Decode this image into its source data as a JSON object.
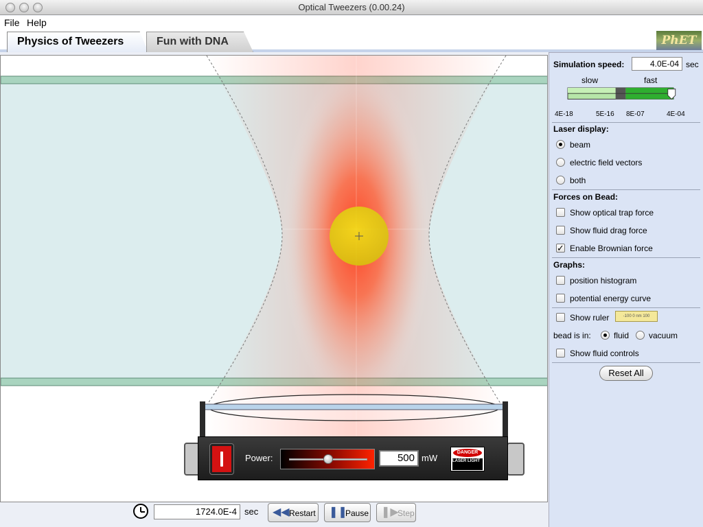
{
  "window": {
    "title": "Optical Tweezers (0.00.24)"
  },
  "menu": {
    "file": "File",
    "help": "Help"
  },
  "tabs": [
    {
      "label": "Physics of Tweezers",
      "selected": true
    },
    {
      "label": "Fun with DNA",
      "selected": false
    }
  ],
  "logo": {
    "text": "PhET"
  },
  "laser": {
    "power_label": "Power:",
    "power_value": "500",
    "power_unit": "mW",
    "power_fraction": 0.5,
    "danger_text": "DANGER",
    "warning_text": "LASER LIGHT"
  },
  "clock": {
    "time": "1724.0E-4",
    "unit": "sec"
  },
  "controls": {
    "restart": "Restart",
    "pause": "Pause",
    "step": "Step"
  },
  "panel": {
    "speed": {
      "label": "Simulation speed:",
      "value": "4.0E-04",
      "unit": "sec",
      "slow": "slow",
      "fast": "fast",
      "ticks": [
        "4E-18",
        "5E-16",
        "8E-07",
        "4E-04"
      ]
    },
    "laser_display": {
      "title": "Laser display:",
      "options": [
        {
          "label": "beam",
          "selected": true
        },
        {
          "label": "electric field vectors",
          "selected": false
        },
        {
          "label": "both",
          "selected": false
        }
      ]
    },
    "forces": {
      "title": "Forces on Bead:",
      "options": [
        {
          "label": "Show optical trap force",
          "checked": false
        },
        {
          "label": "Show fluid drag force",
          "checked": false
        },
        {
          "label": "Enable Brownian force",
          "checked": true
        }
      ]
    },
    "graphs": {
      "title": "Graphs:",
      "options": [
        {
          "label": "position histogram",
          "checked": false
        },
        {
          "label": "potential energy curve",
          "checked": false
        }
      ]
    },
    "ruler": {
      "label": "Show ruler",
      "checked": false,
      "preview": "-100    0 nm    100"
    },
    "medium": {
      "label": "bead is in:",
      "fluid": "fluid",
      "vacuum": "vacuum",
      "selected": "fluid"
    },
    "fluid_controls": {
      "label": "Show fluid controls",
      "checked": false
    },
    "reset": "Reset All"
  },
  "colors": {
    "fluid": "#dcedee",
    "glass": "#a9d4bf",
    "laser": "#ff3a1a",
    "bead": "#e3d014",
    "slider_green": "#2fae2f",
    "panel": "#dbe4f5"
  }
}
